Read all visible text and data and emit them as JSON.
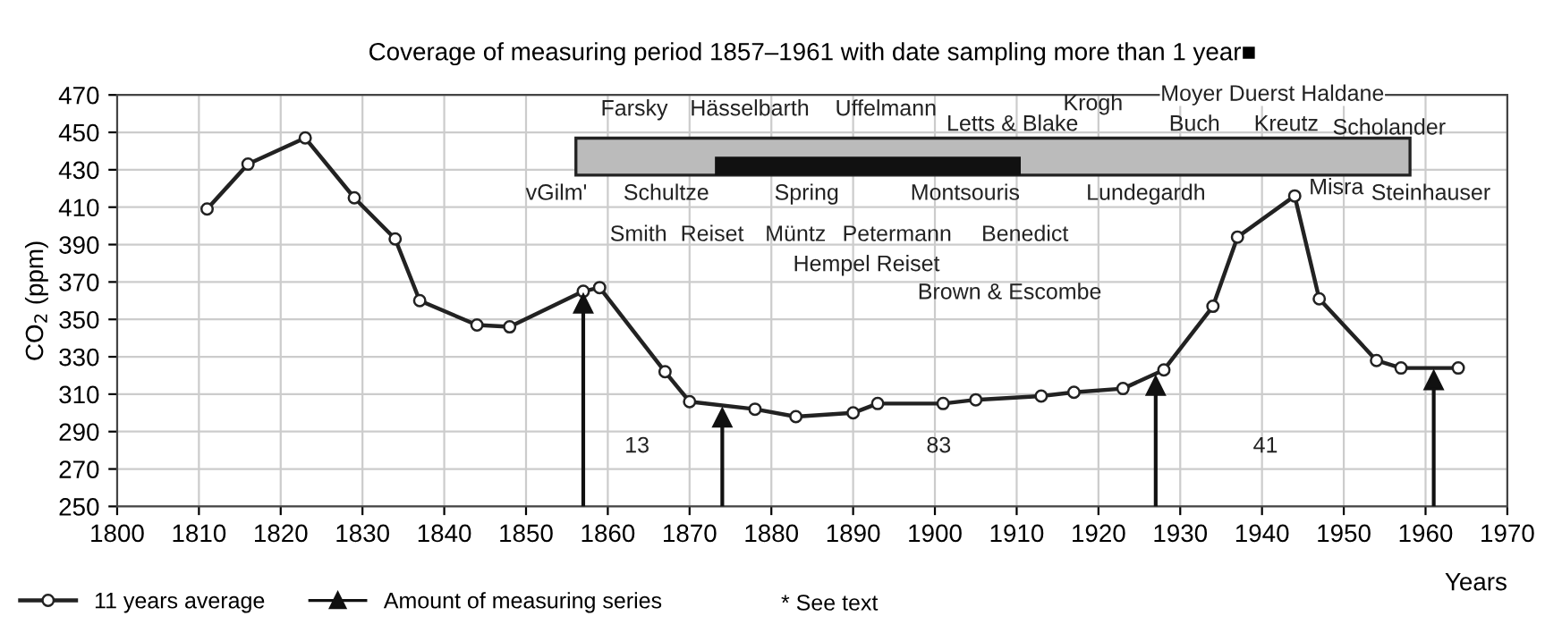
{
  "chart_data": {
    "type": "line",
    "title": "Coverage of measuring period 1857–1961 with date sampling more than 1 year■",
    "xlabel": "Years",
    "ylabel": "CO$_{2}$ (ppm)",
    "xlim": [
      1800,
      1970
    ],
    "xticks": [
      1800,
      1810,
      1820,
      1830,
      1840,
      1850,
      1860,
      1870,
      1880,
      1890,
      1900,
      1910,
      1920,
      1930,
      1940,
      1950,
      1960,
      1970
    ],
    "ylim": [
      250,
      470
    ],
    "yticks": [
      250,
      270,
      290,
      310,
      330,
      350,
      370,
      390,
      410,
      430,
      450,
      470
    ],
    "grid": true,
    "legend": "bottom",
    "marker": "circle",
    "line_style": "solid",
    "series": [
      {
        "name": "11 years average",
        "color": "#222222",
        "x": [
          1811,
          1816,
          1823,
          1829,
          1834,
          1837,
          1844,
          1848,
          1857,
          1859,
          1867,
          1870,
          1878,
          1883,
          1890,
          1893,
          1901,
          1905,
          1913,
          1917,
          1923,
          1928,
          1934,
          1937,
          1944,
          1947,
          1954,
          1957,
          1964
        ],
        "values": [
          409,
          433,
          447,
          415,
          393,
          360,
          347,
          346,
          365,
          367,
          322,
          306,
          302,
          298,
          300,
          305,
          305,
          307,
          309,
          311,
          313,
          323,
          357,
          394,
          416,
          361,
          328,
          324,
          324
        ]
      }
    ],
    "ref_lines": [
      {
        "axis": "x",
        "value": 1857,
        "label": "Amount of measuring series",
        "color": "#111111"
      },
      {
        "axis": "x",
        "value": 1874,
        "color": "#111111"
      },
      {
        "axis": "x",
        "value": 1927,
        "color": "#111111"
      },
      {
        "axis": "x",
        "value": 1961,
        "color": "#111111"
      }
    ],
    "annotations": [
      "13",
      "83",
      "41",
      "Farsky",
      "Hässelbarth",
      "Uffelmann",
      "Letts & Blake",
      "Krogh",
      "Moyer Duerst Haldane",
      "Buch",
      "Kreutz",
      "Scholander",
      "vGilm'",
      "Schultze",
      "Spring",
      "Montsouris",
      "Lundegardh",
      "Misra",
      "Steinhauser",
      "Smith",
      "Reiset",
      "Müntz",
      "Petermann",
      "Benedict",
      "Hempel Reiset",
      "Brown & Escombe",
      "* See text"
    ]
  }
}
